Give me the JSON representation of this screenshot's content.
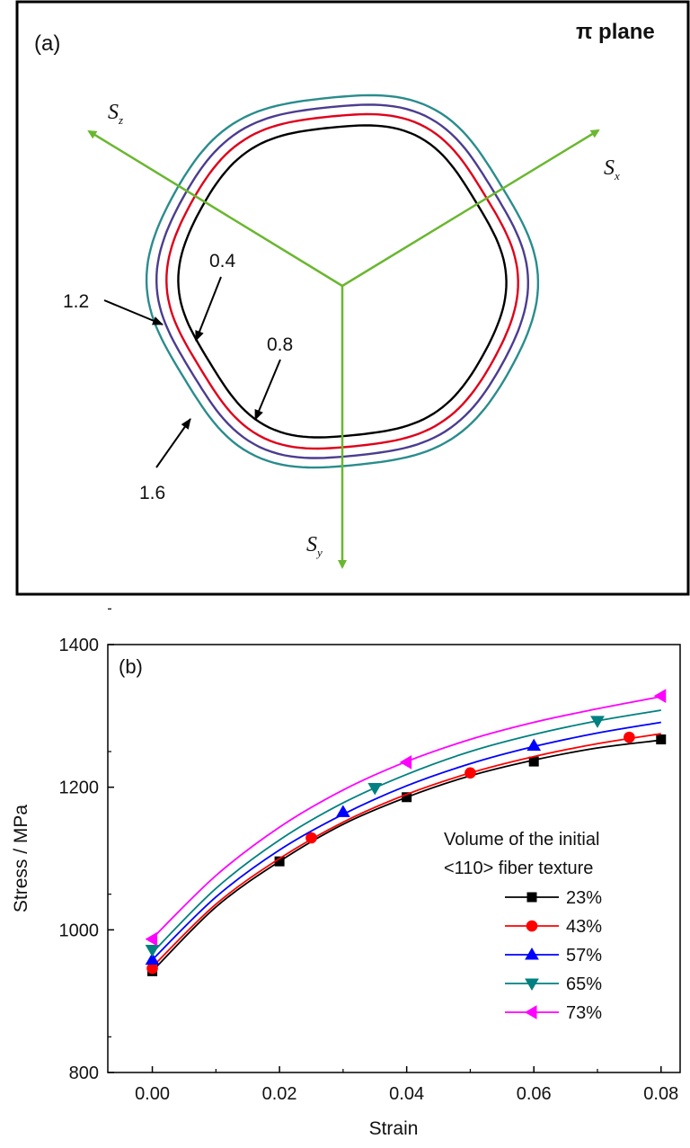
{
  "panel_a": {
    "label": "(a)",
    "title": "π plane",
    "axis_names": {
      "sz": "S",
      "sz_sub": "z",
      "sx": "S",
      "sx_sub": "x",
      "sy": "S",
      "sy_sub": "y"
    },
    "contour_labels": [
      "0.4",
      "0.8",
      "1.2",
      "1.6"
    ],
    "colors": {
      "arrow": "#6ab72f",
      "c1": "#000000",
      "c2": "#e0001a",
      "c3": "#4b3d8f",
      "c4": "#2a8c8c"
    }
  },
  "chart_data": {
    "type": "line",
    "panel_label": "(b)",
    "xlabel": "Strain",
    "ylabel": "Stress / MPa",
    "xlim": [
      -0.007,
      0.083
    ],
    "ylim": [
      800,
      1400
    ],
    "xticks": [
      "0.00",
      "0.02",
      "0.04",
      "0.06",
      "0.08"
    ],
    "yticks": [
      "800",
      "1000",
      "1200",
      "1400"
    ],
    "grid": false,
    "legend_title": [
      "Volume of the initial",
      "<110> fiber texture"
    ],
    "legend_position": "right",
    "series": [
      {
        "name": "23%",
        "color": "#000000",
        "marker": "square",
        "curve": [
          [
            0,
            942
          ],
          [
            0.01,
            1032
          ],
          [
            0.02,
            1096
          ],
          [
            0.03,
            1148
          ],
          [
            0.04,
            1186
          ],
          [
            0.05,
            1216
          ],
          [
            0.06,
            1238
          ],
          [
            0.07,
            1255
          ],
          [
            0.08,
            1266
          ]
        ],
        "markers": [
          [
            0,
            942
          ],
          [
            0.02,
            1096
          ],
          [
            0.04,
            1186
          ],
          [
            0.06,
            1236
          ],
          [
            0.08,
            1267
          ]
        ]
      },
      {
        "name": "43%",
        "color": "#ff0000",
        "marker": "circle",
        "curve": [
          [
            0,
            948
          ],
          [
            0.01,
            1036
          ],
          [
            0.02,
            1100
          ],
          [
            0.03,
            1151
          ],
          [
            0.04,
            1190
          ],
          [
            0.05,
            1220
          ],
          [
            0.06,
            1243
          ],
          [
            0.07,
            1261
          ],
          [
            0.08,
            1275
          ]
        ],
        "markers": [
          [
            0,
            946
          ],
          [
            0.025,
            1129
          ],
          [
            0.05,
            1220
          ],
          [
            0.075,
            1270
          ]
        ]
      },
      {
        "name": "57%",
        "color": "#0000ff",
        "marker": "triangle-up",
        "curve": [
          [
            0,
            958
          ],
          [
            0.01,
            1046
          ],
          [
            0.02,
            1112
          ],
          [
            0.03,
            1162
          ],
          [
            0.04,
            1202
          ],
          [
            0.05,
            1233
          ],
          [
            0.06,
            1257
          ],
          [
            0.07,
            1276
          ],
          [
            0.08,
            1291
          ]
        ],
        "markers": [
          [
            0,
            958
          ],
          [
            0.03,
            1165
          ],
          [
            0.06,
            1258
          ]
        ]
      },
      {
        "name": "65%",
        "color": "#008080",
        "marker": "triangle-down",
        "curve": [
          [
            0,
            968
          ],
          [
            0.01,
            1058
          ],
          [
            0.02,
            1126
          ],
          [
            0.03,
            1178
          ],
          [
            0.04,
            1218
          ],
          [
            0.05,
            1250
          ],
          [
            0.06,
            1274
          ],
          [
            0.07,
            1293
          ],
          [
            0.08,
            1308
          ]
        ],
        "markers": [
          [
            0,
            972
          ],
          [
            0.035,
            1199
          ],
          [
            0.07,
            1293
          ]
        ]
      },
      {
        "name": "73%",
        "color": "#ff00ff",
        "marker": "triangle-left",
        "curve": [
          [
            0,
            988
          ],
          [
            0.01,
            1076
          ],
          [
            0.02,
            1144
          ],
          [
            0.03,
            1196
          ],
          [
            0.04,
            1236
          ],
          [
            0.05,
            1267
          ],
          [
            0.06,
            1291
          ],
          [
            0.07,
            1310
          ],
          [
            0.08,
            1327
          ]
        ],
        "markers": [
          [
            0,
            987
          ],
          [
            0.04,
            1235
          ],
          [
            0.08,
            1328
          ]
        ]
      }
    ]
  }
}
